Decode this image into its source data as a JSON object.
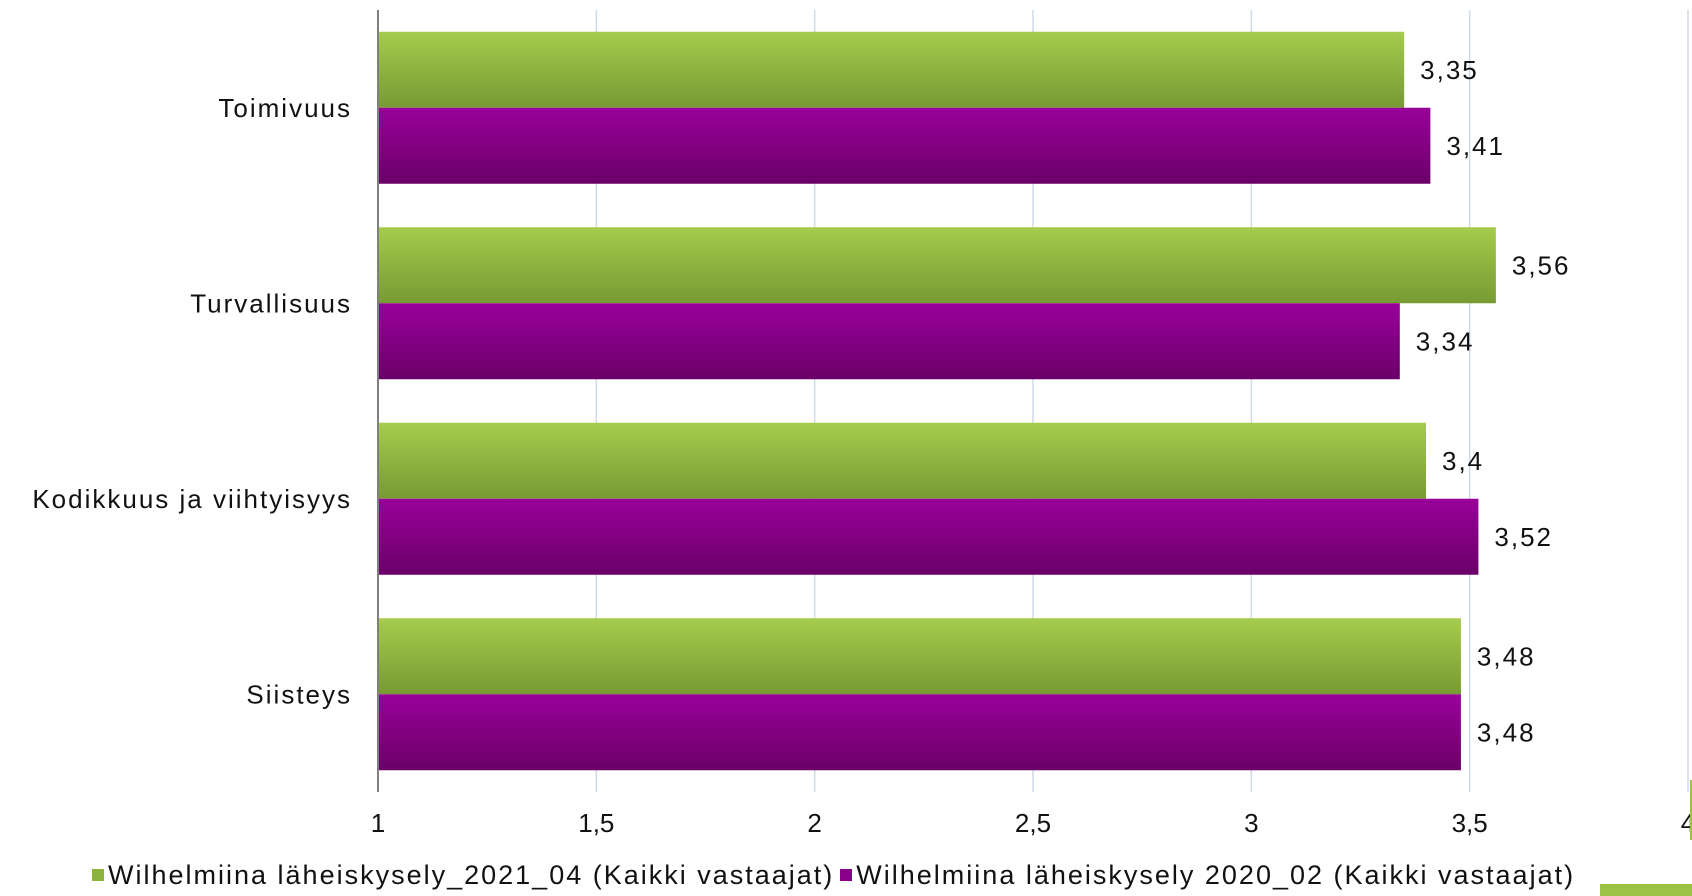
{
  "chart_data": {
    "type": "bar",
    "orientation": "horizontal",
    "categories": [
      "Toimivuus",
      "Turvallisuus",
      "Kodikkuus ja viihtyisyys",
      "Siisteys"
    ],
    "series": [
      {
        "name": "Wilhelmiina läheiskysely_2021_04 (Kaikki vastaajat)",
        "values": [
          3.35,
          3.56,
          3.4,
          3.48
        ],
        "labels": [
          "3,35",
          "3,56",
          "3,4",
          "3,48"
        ],
        "color": "#8db33f"
      },
      {
        "name": "Wilhelmiina läheiskysely 2020_02 (Kaikki vastaajat)",
        "values": [
          3.41,
          3.34,
          3.52,
          3.48
        ],
        "labels": [
          "3,41",
          "3,34",
          "3,52",
          "3,48"
        ],
        "color": "#880088"
      }
    ],
    "xlim": [
      1,
      4
    ],
    "xticks": [
      1,
      1.5,
      2,
      2.5,
      3,
      3.5,
      4
    ],
    "xtick_labels": [
      "1",
      "1,5",
      "2",
      "2,5",
      "3",
      "3,5",
      "4"
    ],
    "grid": true,
    "legend": "bottom",
    "title": "",
    "xlabel": "",
    "ylabel": ""
  }
}
